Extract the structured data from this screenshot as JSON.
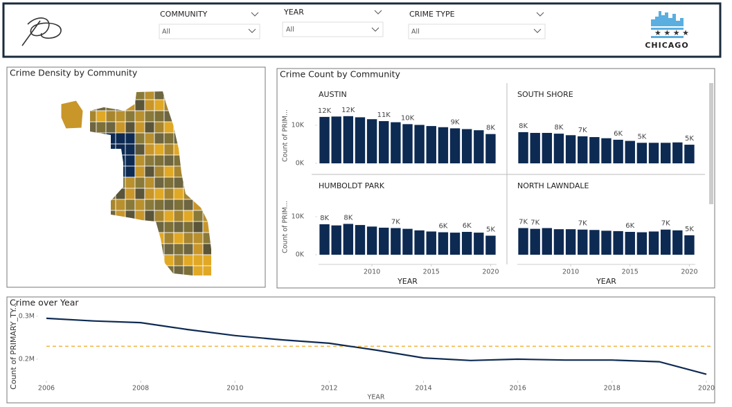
{
  "header": {
    "filters": [
      {
        "label": "COMMUNITY",
        "value": "All"
      },
      {
        "label": "YEAR",
        "value": "All"
      },
      {
        "label": "CRIME TYPE",
        "value": "All"
      }
    ],
    "logo_text": "CHICAGO"
  },
  "map": {
    "title": "Crime Density by Community"
  },
  "chart_data": [
    {
      "type": "bar",
      "title": "Crime Count by Community",
      "x_label": "YEAR",
      "y_label": "Count of PRIM...",
      "x": [
        2006,
        2007,
        2008,
        2009,
        2010,
        2011,
        2012,
        2013,
        2014,
        2015,
        2016,
        2017,
        2018,
        2019,
        2020
      ],
      "xticks": [
        2010,
        2015,
        2020
      ],
      "ylim": [
        0,
        14000
      ],
      "yticks": [
        {
          "value": 0,
          "label": "0K"
        },
        {
          "value": 10000,
          "label": "10K"
        }
      ],
      "color": "#0d2a52",
      "panels": [
        {
          "name": "AUSTIN",
          "values": [
            12200,
            12300,
            12400,
            12100,
            11600,
            11100,
            10800,
            10300,
            10100,
            9800,
            9500,
            9200,
            9000,
            8700,
            7700
          ],
          "value_labels": [
            "12K",
            null,
            "12K",
            null,
            null,
            "11K",
            null,
            "10K",
            null,
            null,
            null,
            "9K",
            null,
            null,
            "8K"
          ]
        },
        {
          "name": "SOUTH SHORE",
          "values": [
            8200,
            8000,
            8000,
            7800,
            7400,
            7100,
            6900,
            6600,
            6200,
            5900,
            5400,
            5400,
            5400,
            5500,
            4900
          ],
          "value_labels": [
            "8K",
            null,
            null,
            "8K",
            null,
            "7K",
            null,
            null,
            "6K",
            null,
            "5K",
            null,
            null,
            null,
            "5K"
          ]
        },
        {
          "name": "HUMBOLDT PARK",
          "values": [
            8000,
            7700,
            8100,
            7800,
            7400,
            7100,
            7000,
            6800,
            6400,
            6100,
            5900,
            5800,
            6000,
            5800,
            5000
          ],
          "value_labels": [
            "8K",
            null,
            "8K",
            null,
            null,
            null,
            "7K",
            null,
            null,
            null,
            "6K",
            null,
            "6K",
            null,
            "5K"
          ]
        },
        {
          "name": "NORTH LAWNDALE",
          "values": [
            7000,
            6800,
            7000,
            6700,
            6700,
            6600,
            6500,
            6300,
            6200,
            6000,
            5900,
            6100,
            6600,
            6400,
            5100
          ],
          "value_labels": [
            "7K",
            "7K",
            null,
            null,
            null,
            "7K",
            null,
            null,
            null,
            "6K",
            null,
            null,
            "7K",
            null,
            "5K"
          ]
        }
      ]
    },
    {
      "type": "line",
      "title": "Crime over Year",
      "x_label": "YEAR",
      "y_label": "Count of PRIMARY_TY...",
      "x": [
        2006,
        2007,
        2008,
        2009,
        2010,
        2011,
        2012,
        2013,
        2014,
        2015,
        2016,
        2017,
        2018,
        2019,
        2020
      ],
      "values": [
        295000,
        289000,
        285000,
        269000,
        255000,
        245000,
        237000,
        221000,
        203000,
        197000,
        200000,
        198000,
        198000,
        194000,
        165000
      ],
      "xlim": [
        2006,
        2020
      ],
      "xticks": [
        2006,
        2008,
        2010,
        2012,
        2014,
        2016,
        2018,
        2020
      ],
      "ylim": [
        158000,
        311000
      ],
      "yticks": [
        {
          "value": 200000,
          "label": "0.2M"
        },
        {
          "value": 300000,
          "label": "0.3M"
        }
      ],
      "color": "#0d2a52",
      "average": 230000,
      "average_color": "#f2b84b"
    }
  ]
}
